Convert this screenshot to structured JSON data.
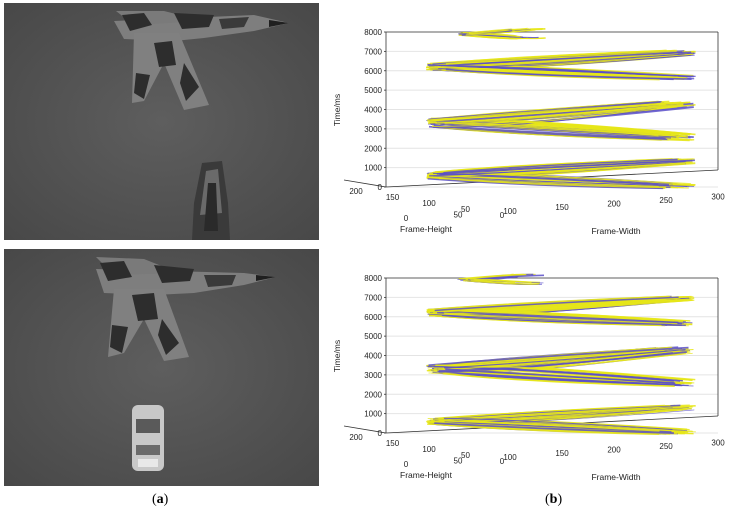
{
  "figure": {
    "panels": [
      {
        "caption_letter": "a"
      },
      {
        "caption_letter": "b"
      }
    ]
  },
  "chart_data": [
    {
      "type": "scatter",
      "title": "",
      "xlabel": "Frame-Width",
      "ylabel": "Frame-Height",
      "zlabel": "Time/ms",
      "z_ticks": [
        "0",
        "1000",
        "2000",
        "3000",
        "4000",
        "5000",
        "6000",
        "7000",
        "8000"
      ],
      "width_ticks": [
        "0",
        "50",
        "100",
        "150",
        "200",
        "250",
        "300"
      ],
      "height_ticks": [
        "200",
        "150",
        "100",
        "50",
        "0"
      ],
      "zlim": [
        0,
        8000
      ],
      "series_colors": [
        "#e6e619",
        "#5a4fc9"
      ]
    },
    {
      "type": "scatter",
      "title": "",
      "xlabel": "Frame-Width",
      "ylabel": "Frame-Height",
      "zlabel": "Time/ms",
      "z_ticks": [
        "0",
        "1000",
        "2000",
        "3000",
        "4000",
        "5000",
        "6000",
        "7000",
        "8000"
      ],
      "width_ticks": [
        "0",
        "50",
        "100",
        "150",
        "200",
        "250",
        "300"
      ],
      "height_ticks": [
        "200",
        "150",
        "100",
        "50",
        "0"
      ],
      "zlim": [
        0,
        8000
      ],
      "series_colors": [
        "#e6e619",
        "#5a4fc9"
      ]
    }
  ]
}
